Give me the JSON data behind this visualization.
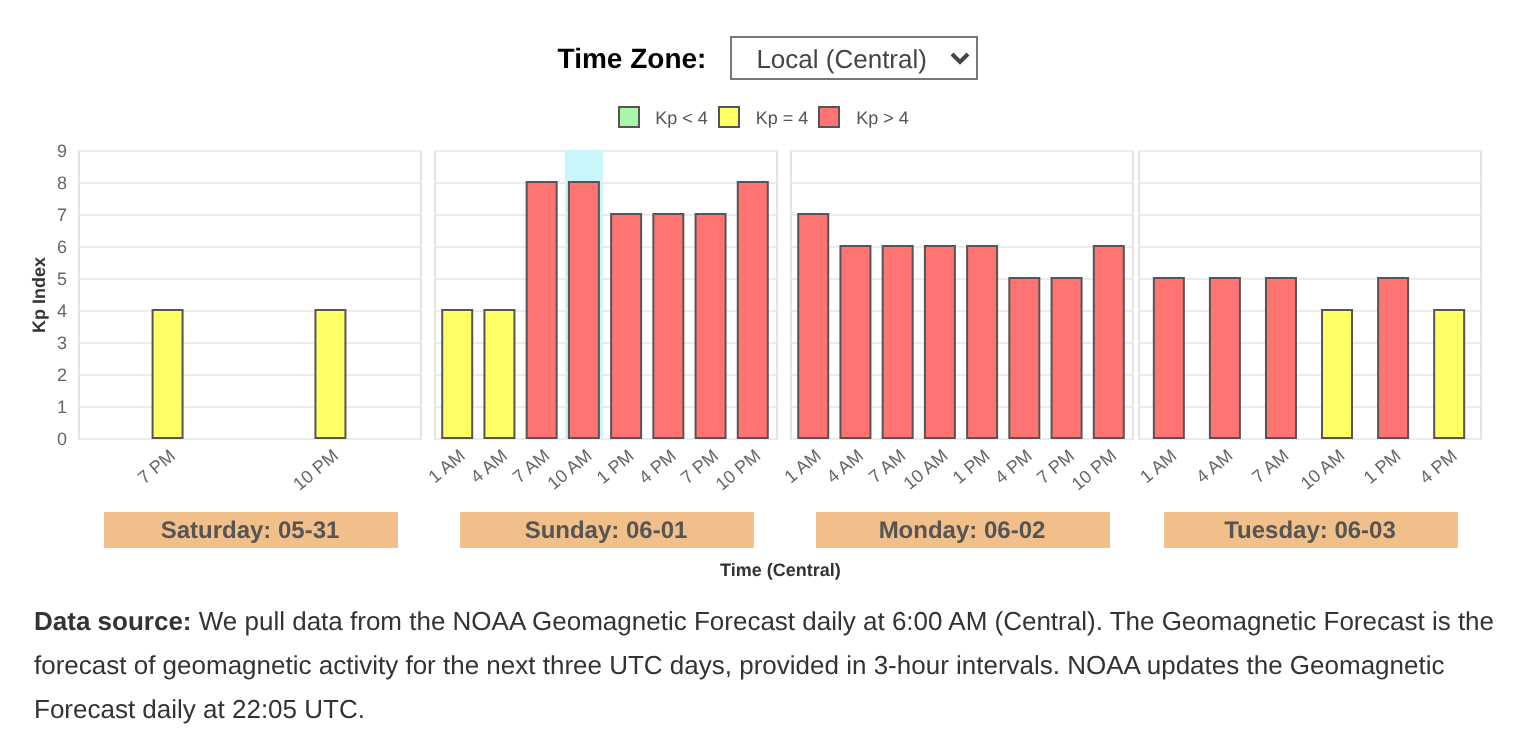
{
  "chart_data": [
    {
      "type": "bar",
      "ylabel": "Kp Index",
      "xlabel": "Saturday: 05-31",
      "categories": [
        "7 PM",
        "10 PM"
      ],
      "series": [
        {
          "name": "Kp < 4",
          "color": "#a9f5a9",
          "values": [
            null,
            null
          ]
        },
        {
          "name": "Kp = 4",
          "color": "#ffff66",
          "values": [
            4,
            4
          ]
        },
        {
          "name": "Kp > 4",
          "color": "#ff7373",
          "values": [
            null,
            null
          ]
        }
      ],
      "ylim": [
        0,
        9
      ],
      "yticks": [
        0,
        1,
        2,
        3,
        4,
        5,
        6,
        7,
        8,
        9
      ],
      "grid": "y",
      "legend": "top",
      "annotations": [
        "Time Zone:",
        "Local (Central)",
        "Time (Central)",
        "Data source:",
        "We pull data from the NOAA Geomagnetic Forecast daily at 6:00 AM (Central). The Geomagnetic Forecast is the forecast of geomagnetic activity for the next three UTC days, provided in 3-hour intervals. NOAA updates the Geomagnetic Forecast daily at 22:05 UTC."
      ]
    },
    {
      "type": "bar",
      "xlabel": "Sunday: 06-01",
      "categories": [
        "1 AM",
        "4 AM",
        "7 AM",
        "10 AM",
        "1 PM",
        "4 PM",
        "7 PM",
        "10 PM"
      ],
      "series": [
        {
          "color": "#a9f5a9",
          "values": [
            null,
            null,
            null,
            null,
            null,
            null,
            null,
            null
          ]
        },
        {
          "color": "#ffff66",
          "values": [
            4,
            4,
            null,
            null,
            null,
            null,
            null,
            null
          ]
        },
        {
          "color": "#ff7373",
          "values": [
            null,
            null,
            8,
            8,
            7,
            7,
            7,
            8
          ]
        }
      ],
      "bands": [
        {
          "axis": "x",
          "from": "10 AM",
          "to": "10 AM",
          "color": "#c8f6fb"
        }
      ],
      "ylim": [
        0,
        9
      ],
      "yticks": [
        0,
        1,
        2,
        3,
        4,
        5,
        6,
        7,
        8,
        9
      ],
      "grid": "y",
      "tick_labels": "x"
    },
    {
      "type": "bar",
      "xlabel": "Monday: 06-02",
      "categories": [
        "1 AM",
        "4 AM",
        "7 AM",
        "10 AM",
        "1 PM",
        "4 PM",
        "7 PM",
        "10 PM"
      ],
      "series": [
        {
          "color": "#a9f5a9",
          "values": [
            null,
            null,
            null,
            null,
            null,
            null,
            null,
            null
          ]
        },
        {
          "color": "#ffff66",
          "values": [
            null,
            null,
            null,
            null,
            null,
            null,
            null,
            null
          ]
        },
        {
          "color": "#ff7373",
          "values": [
            7,
            6,
            6,
            6,
            6,
            5,
            5,
            6
          ]
        }
      ],
      "ylim": [
        0,
        9
      ],
      "yticks": [
        0,
        1,
        2,
        3,
        4,
        5,
        6,
        7,
        8,
        9
      ],
      "grid": "y",
      "tick_labels": "x"
    },
    {
      "type": "bar",
      "xlabel": "Tuesday: 06-03",
      "categories": [
        "1 AM",
        "4 AM",
        "7 AM",
        "10 AM",
        "1 PM",
        "4 PM"
      ],
      "series": [
        {
          "color": "#a9f5a9",
          "values": [
            null,
            null,
            null,
            null,
            null,
            null
          ]
        },
        {
          "color": "#ffff66",
          "values": [
            null,
            null,
            null,
            4,
            null,
            4
          ]
        },
        {
          "color": "#ff7373",
          "values": [
            5,
            5,
            5,
            null,
            5,
            null
          ]
        }
      ],
      "ylim": [
        0,
        9
      ],
      "yticks": [
        0,
        1,
        2,
        3,
        4,
        5,
        6,
        7,
        8,
        9
      ],
      "grid": "y",
      "tick_labels": "x"
    }
  ]
}
